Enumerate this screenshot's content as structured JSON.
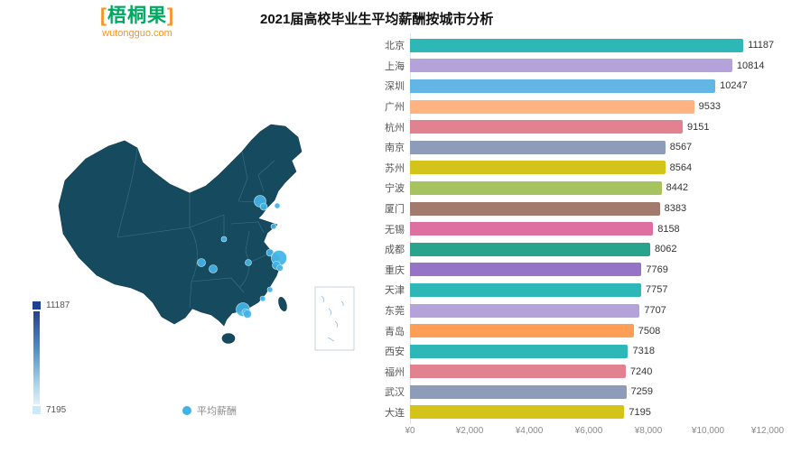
{
  "logo": {
    "bracket_left": "[",
    "text": "梧桐果",
    "bracket_right": "]",
    "url": "wutongguo.com",
    "brand_green": "#00a862",
    "brand_orange": "#f7941d"
  },
  "chart_data": {
    "type": "bar",
    "orientation": "horizontal",
    "title": "2021届高校毕业生平均薪酬按城市分析",
    "categories": [
      "北京",
      "上海",
      "深圳",
      "广州",
      "杭州",
      "南京",
      "苏州",
      "宁波",
      "厦门",
      "无锡",
      "成都",
      "重庆",
      "天津",
      "东莞",
      "青岛",
      "西安",
      "福州",
      "武汉",
      "大连"
    ],
    "values": [
      11187,
      10814,
      10247,
      9533,
      9151,
      8567,
      8564,
      8442,
      8383,
      8158,
      8062,
      7769,
      7757,
      7707,
      7508,
      7318,
      7240,
      7259,
      7195
    ],
    "colors": [
      "#2eb7b7",
      "#b4a3da",
      "#63b5e6",
      "#ffb380",
      "#e28291",
      "#8d9db9",
      "#d4c41a",
      "#a7c35f",
      "#a37b6e",
      "#de70a1",
      "#28a48c",
      "#9573c6",
      "#2eb7b7",
      "#b4a3da",
      "#ff9e55",
      "#2eb7b7",
      "#e28291",
      "#8d9db9",
      "#d4c41a"
    ],
    "x_ticks": [
      "¥0",
      "¥2,000",
      "¥4,000",
      "¥6,000",
      "¥8,000",
      "¥10,000",
      "¥12,000"
    ],
    "xlim": [
      0,
      12000
    ],
    "series_name": "平均薪酬",
    "grid": false,
    "legend_position": "bottom-left-under-map"
  },
  "map": {
    "legend_label": "平均薪酬",
    "visualmap": {
      "max": "11187",
      "min": "7195"
    },
    "bubble_color": "#41b3e6",
    "land_color": "#164a5e",
    "bubbles": [
      {
        "name": "北京",
        "x": 228,
        "y": 95,
        "r": 6.5
      },
      {
        "name": "天津",
        "x": 232,
        "y": 101,
        "r": 4
      },
      {
        "name": "大连",
        "x": 247,
        "y": 100,
        "r": 3
      },
      {
        "name": "青岛",
        "x": 243,
        "y": 123,
        "r": 3
      },
      {
        "name": "西安",
        "x": 188,
        "y": 137,
        "r": 3
      },
      {
        "name": "成都",
        "x": 163,
        "y": 163,
        "r": 4.5
      },
      {
        "name": "重庆",
        "x": 176,
        "y": 170,
        "r": 4.5
      },
      {
        "name": "武汉",
        "x": 215,
        "y": 163,
        "r": 3.5
      },
      {
        "name": "南京",
        "x": 239,
        "y": 152,
        "r": 4
      },
      {
        "name": "无锡",
        "x": 244,
        "y": 156,
        "r": 3.5
      },
      {
        "name": "苏州",
        "x": 246,
        "y": 158,
        "r": 3.5
      },
      {
        "name": "上海",
        "x": 249,
        "y": 158,
        "r": 8.5
      },
      {
        "name": "杭州",
        "x": 246,
        "y": 166,
        "r": 4.5
      },
      {
        "name": "宁波",
        "x": 250,
        "y": 169,
        "r": 3.5
      },
      {
        "name": "福州",
        "x": 239,
        "y": 193,
        "r": 3
      },
      {
        "name": "厦门",
        "x": 231,
        "y": 203,
        "r": 3
      },
      {
        "name": "广州",
        "x": 209,
        "y": 215,
        "r": 7.5
      },
      {
        "name": "东莞",
        "x": 212,
        "y": 218,
        "r": 4
      },
      {
        "name": "深圳",
        "x": 214,
        "y": 220,
        "r": 4.5
      }
    ]
  }
}
